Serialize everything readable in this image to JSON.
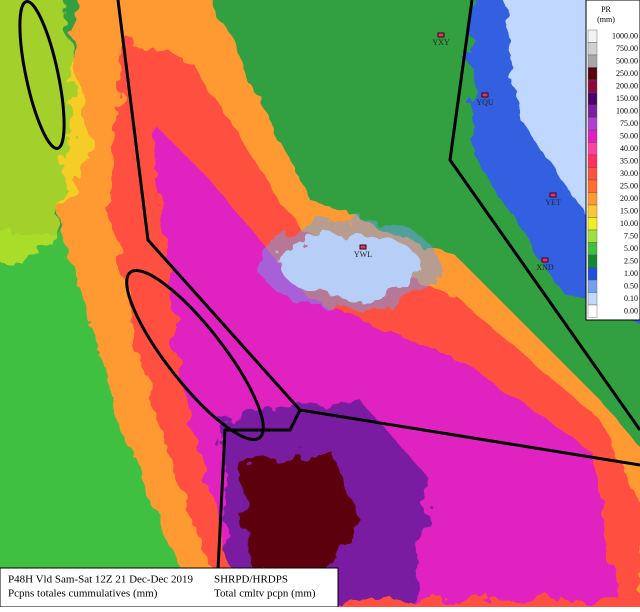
{
  "legend": {
    "title": "PR",
    "unit": "(mm)",
    "levels": [
      {
        "value": 1000,
        "label": "1000.00",
        "color": "#f2f2f2"
      },
      {
        "value": 750,
        "label": "750.00",
        "color": "#d0d0d0"
      },
      {
        "value": 500,
        "label": "500.00",
        "color": "#a8a8a8"
      },
      {
        "value": 250,
        "label": "250.00",
        "color": "#5c0010"
      },
      {
        "value": 200,
        "label": "200.00",
        "color": "#8b0a3a"
      },
      {
        "value": 150,
        "label": "150.00",
        "color": "#4b006e"
      },
      {
        "value": 100,
        "label": "100.00",
        "color": "#7a1fa2"
      },
      {
        "value": 75,
        "label": "75.00",
        "color": "#b040d0"
      },
      {
        "value": 50,
        "label": "50.00",
        "color": "#e020c0"
      },
      {
        "value": 40,
        "label": "40.00",
        "color": "#ff40a0"
      },
      {
        "value": 35,
        "label": "35.00",
        "color": "#ff3060"
      },
      {
        "value": 30,
        "label": "30.00",
        "color": "#ff5040"
      },
      {
        "value": 25,
        "label": "25.00",
        "color": "#ff7030"
      },
      {
        "value": 20,
        "label": "20.00",
        "color": "#ff9a30"
      },
      {
        "value": 15,
        "label": "15.00",
        "color": "#ffc830"
      },
      {
        "value": 10,
        "label": "10.00",
        "color": "#f0f020"
      },
      {
        "value": 7.5,
        "label": "7.50",
        "color": "#a0e040"
      },
      {
        "value": 5,
        "label": "5.00",
        "color": "#40c040"
      },
      {
        "value": 2.5,
        "label": "2.50",
        "color": "#108a30"
      },
      {
        "value": 1,
        "label": "1.00",
        "color": "#2050e0"
      },
      {
        "value": 0.5,
        "label": "0.50",
        "color": "#70a0f0"
      },
      {
        "value": 0.1,
        "label": "0.10",
        "color": "#c0d8ff"
      },
      {
        "value": 0,
        "label": "0.00",
        "color": "#ffffff"
      }
    ]
  },
  "stations": [
    "YXY",
    "YQU",
    "YET",
    "YWL",
    "XND"
  ],
  "footer": {
    "left": [
      "P48H Vld Sam-Sat 12Z 21 Dec-Dec 2019",
      "Pcpns totales cummulatives (mm)"
    ],
    "right": [
      "SHRPD/HRDPS",
      "Total cmltv pcpn (mm)"
    ]
  }
}
